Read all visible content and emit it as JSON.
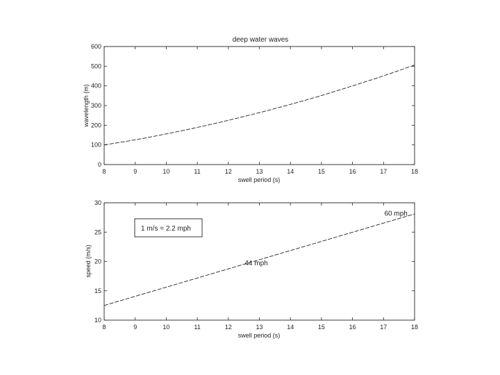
{
  "chart_data": [
    {
      "type": "line",
      "title": "deep water waves",
      "xlabel": "swell period (s)",
      "ylabel": "wavelength (m)",
      "xlim": [
        8,
        18
      ],
      "ylim": [
        0,
        600
      ],
      "xticks": [
        "8",
        "9",
        "10",
        "11",
        "12",
        "13",
        "14",
        "15",
        "16",
        "17",
        "18"
      ],
      "yticks": [
        "0",
        "100",
        "200",
        "300",
        "400",
        "500",
        "600"
      ],
      "x": [
        8,
        9,
        10,
        11,
        12,
        13,
        14,
        15,
        16,
        17,
        18
      ],
      "values": [
        100,
        126,
        156,
        189,
        225,
        264,
        306,
        351,
        400,
        451,
        506
      ],
      "grid": false
    },
    {
      "type": "line",
      "title": "",
      "xlabel": "swell period (s)",
      "ylabel": "speed (m/s)",
      "xlim": [
        8,
        18
      ],
      "ylim": [
        10,
        30
      ],
      "xticks": [
        "8",
        "9",
        "10",
        "11",
        "12",
        "13",
        "14",
        "15",
        "16",
        "17",
        "18"
      ],
      "yticks": [
        "10",
        "15",
        "20",
        "25",
        "30"
      ],
      "x": [
        8,
        18
      ],
      "values": [
        12.5,
        28.1
      ],
      "grid": false,
      "legend_text": "1 m/s  = 2.2 mph",
      "legend_placement": "top-left",
      "annotations": [
        {
          "text": "44 mph",
          "x": 12.9,
          "y": 19.8
        },
        {
          "text": "60 mph",
          "x": 17.4,
          "y": 28.3
        }
      ]
    }
  ]
}
